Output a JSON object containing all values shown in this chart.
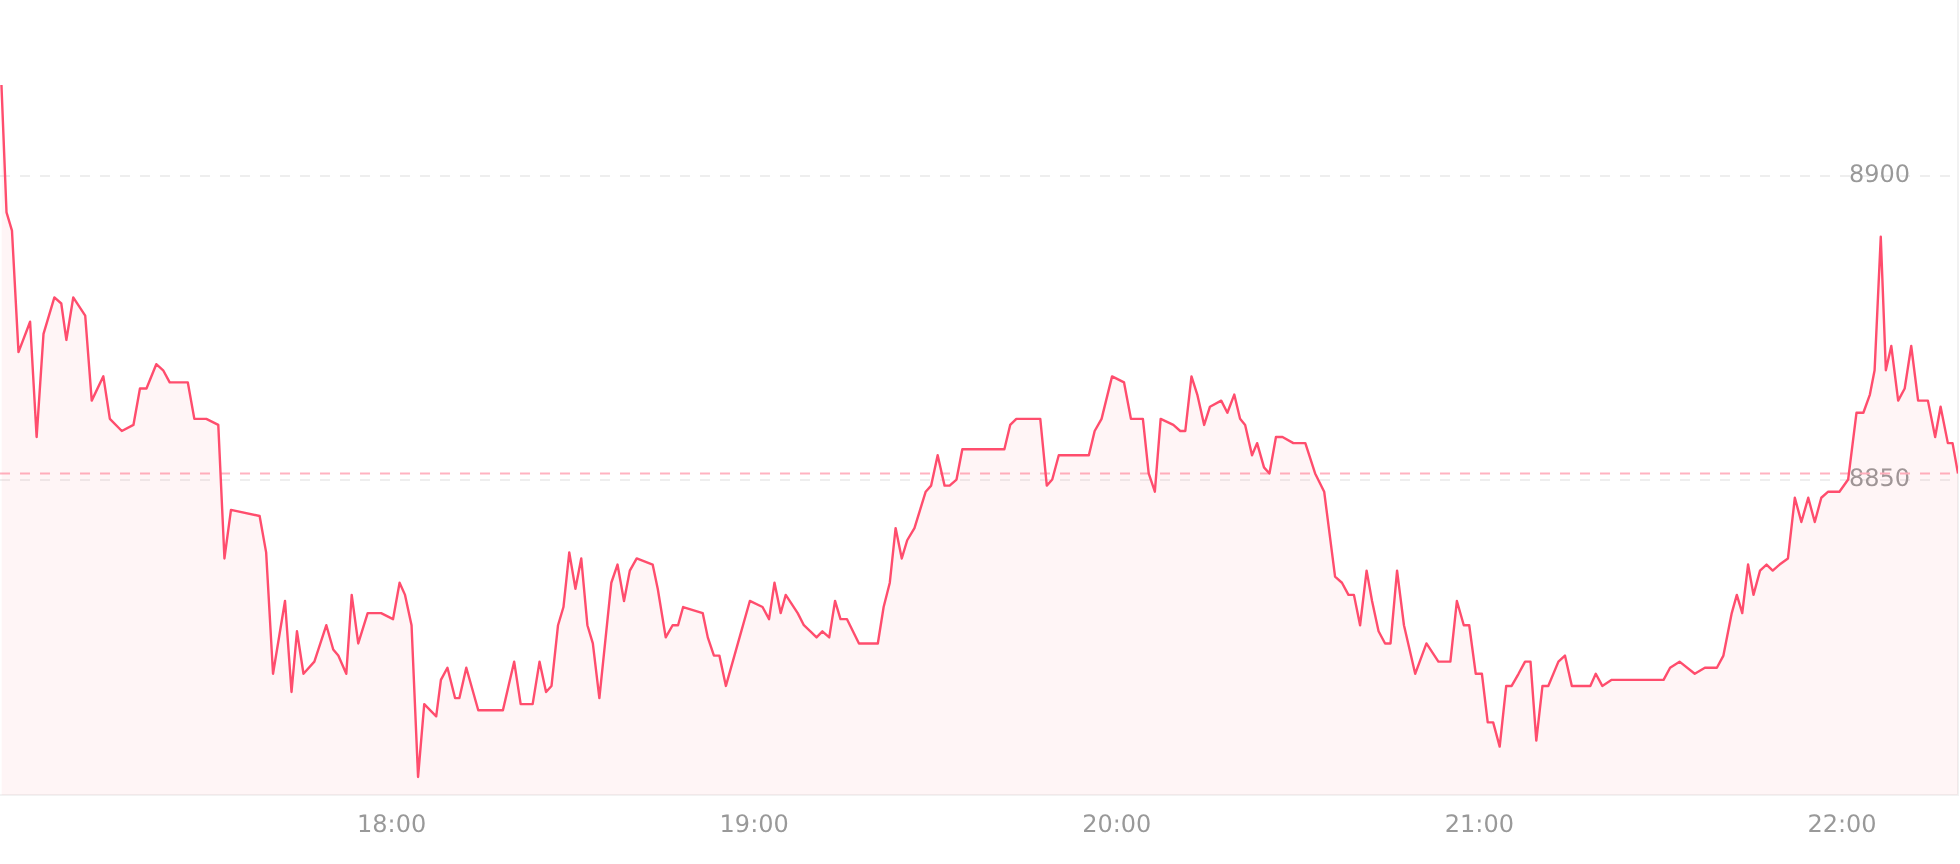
{
  "chart_data": {
    "type": "area",
    "x": [
      16.924,
      16.938,
      16.953,
      16.971,
      17.003,
      17.021,
      17.04,
      17.07,
      17.089,
      17.103,
      17.122,
      17.155,
      17.173,
      17.205,
      17.223,
      17.256,
      17.288,
      17.306,
      17.324,
      17.351,
      17.37,
      17.388,
      17.438,
      17.456,
      17.489,
      17.522,
      17.539,
      17.557,
      17.636,
      17.654,
      17.673,
      17.706,
      17.724,
      17.739,
      17.757,
      17.787,
      17.82,
      17.839,
      17.853,
      17.875,
      17.89,
      17.908,
      17.934,
      17.971,
      18.004,
      18.022,
      18.037,
      18.055,
      18.073,
      18.09,
      18.123,
      18.136,
      18.154,
      18.175,
      18.187,
      18.206,
      18.239,
      18.307,
      18.338,
      18.356,
      18.389,
      18.408,
      18.426,
      18.441,
      18.459,
      18.474,
      18.49,
      18.507,
      18.523,
      18.54,
      18.555,
      18.573,
      18.606,
      18.623,
      18.641,
      18.657,
      18.676,
      18.72,
      18.734,
      18.756,
      18.775,
      18.79,
      18.804,
      18.858,
      18.872,
      18.889,
      18.904,
      18.922,
      18.955,
      18.988,
      19.023,
      19.041,
      19.056,
      19.073,
      19.087,
      19.12,
      19.137,
      19.155,
      19.172,
      19.188,
      19.207,
      19.223,
      19.238,
      19.256,
      19.289,
      19.341,
      19.357,
      19.374,
      19.39,
      19.407,
      19.422,
      19.442,
      19.473,
      19.488,
      19.506,
      19.525,
      19.539,
      19.558,
      19.574,
      19.69,
      19.706,
      19.723,
      19.789,
      19.807,
      19.822,
      19.84,
      19.923,
      19.939,
      19.958,
      19.987,
      20.02,
      20.039,
      20.072,
      20.088,
      20.105,
      20.121,
      20.156,
      20.175,
      20.189,
      20.206,
      20.222,
      20.241,
      20.257,
      20.288,
      20.305,
      20.324,
      20.34,
      20.354,
      20.373,
      20.387,
      20.406,
      20.421,
      20.439,
      20.457,
      20.487,
      20.52,
      20.547,
      20.572,
      20.602,
      20.621,
      20.639,
      20.654,
      20.671,
      20.689,
      20.704,
      20.722,
      20.74,
      20.755,
      20.773,
      20.792,
      20.823,
      20.854,
      20.887,
      20.92,
      20.938,
      20.957,
      20.972,
      20.99,
      21.007,
      21.023,
      21.038,
      21.056,
      21.074,
      21.089,
      21.108,
      21.126,
      21.141,
      21.157,
      21.174,
      21.19,
      21.218,
      21.236,
      21.255,
      21.306,
      21.321,
      21.339,
      21.365,
      21.438,
      21.475,
      21.508,
      21.526,
      21.552,
      21.594,
      21.622,
      21.655,
      21.673,
      21.696,
      21.71,
      21.725,
      21.741,
      21.756,
      21.774,
      21.792,
      21.809,
      21.828,
      21.851,
      21.87,
      21.888,
      21.907,
      21.925,
      21.943,
      21.962,
      21.993,
      22.017,
      22.04,
      22.059,
      22.077,
      22.09,
      22.107,
      22.121,
      22.136,
      22.155,
      22.173,
      22.191,
      22.21,
      22.237,
      22.257,
      22.272,
      22.292,
      22.305,
      22.32
    ],
    "series": [
      {
        "color": "#ff4d6d",
        "values": [
          8915,
          8894,
          8891,
          8871,
          8876,
          8857,
          8874,
          8880,
          8879,
          8873,
          8880,
          8877,
          8863,
          8867,
          8860,
          8858,
          8859,
          8865,
          8865,
          8869,
          8868,
          8866,
          8866,
          8860,
          8860,
          8859,
          8837,
          8845,
          8844,
          8838,
          8818,
          8830,
          8815,
          8825,
          8818,
          8820,
          8826,
          8822,
          8821,
          8818,
          8831,
          8823,
          8828,
          8828,
          8827,
          8833,
          8831,
          8826,
          8801,
          8813,
          8811,
          8817,
          8819,
          8814,
          8814,
          8819,
          8812,
          8812,
          8820,
          8813,
          8813,
          8820,
          8815,
          8816,
          8826,
          8829,
          8838,
          8832,
          8837,
          8826,
          8823,
          8814,
          8833,
          8836,
          8830,
          8835,
          8837,
          8836,
          8832,
          8824,
          8826,
          8826,
          8829,
          8828,
          8824,
          8821,
          8821,
          8816,
          8823,
          8830,
          8829,
          8827,
          8833,
          8828,
          8831,
          8828,
          8826,
          8825,
          8824,
          8825,
          8824,
          8830,
          8827,
          8827,
          8823,
          8823,
          8829,
          8833,
          8842,
          8837,
          8840,
          8842,
          8848,
          8849,
          8854,
          8849,
          8849,
          8850,
          8855,
          8855,
          8859,
          8860,
          8860,
          8849,
          8850,
          8854,
          8854,
          8858,
          8860,
          8867,
          8866,
          8860,
          8860,
          8851,
          8848,
          8860,
          8859,
          8858,
          8858,
          8867,
          8864,
          8859,
          8862,
          8863,
          8861,
          8864,
          8860,
          8859,
          8854,
          8856,
          8852,
          8851,
          8857,
          8857,
          8856,
          8856,
          8851,
          8848,
          8834,
          8833,
          8831,
          8831,
          8826,
          8835,
          8830,
          8825,
          8823,
          8823,
          8835,
          8826,
          8818,
          8823,
          8820,
          8820,
          8830,
          8826,
          8826,
          8818,
          8818,
          8810,
          8810,
          8806,
          8816,
          8816,
          8818,
          8820,
          8820,
          8807,
          8816,
          8816,
          8820,
          8821,
          8816,
          8816,
          8818,
          8816,
          8817,
          8817,
          8817,
          8817,
          8819,
          8820,
          8818,
          8819,
          8819,
          8821,
          8828,
          8831,
          8828,
          8836,
          8831,
          8835,
          8836,
          8835,
          8836,
          8837,
          8847,
          8843,
          8847,
          8843,
          8847,
          8848,
          8848,
          8850,
          8861,
          8861,
          8864,
          8868,
          8890,
          8868,
          8872,
          8863,
          8865,
          8872,
          8863,
          8863,
          8857,
          8862,
          8856,
          8856,
          8851
        ]
      }
    ],
    "xlim": [
      16.92,
      22.32
    ],
    "xticks": [
      {
        "value": 18,
        "label": "18:00"
      },
      {
        "value": 19,
        "label": "19:00"
      },
      {
        "value": 20,
        "label": "20:00"
      },
      {
        "value": 21,
        "label": "21:00"
      },
      {
        "value": 22,
        "label": "22:00"
      }
    ],
    "ylim": [
      8798,
      8929
    ],
    "yticks": [
      8850,
      8900
    ],
    "grid": "y",
    "ref_lines": [
      {
        "axis": "y",
        "value": 8851,
        "color": "#ffb3c1",
        "line_style": "dashed"
      }
    ]
  }
}
